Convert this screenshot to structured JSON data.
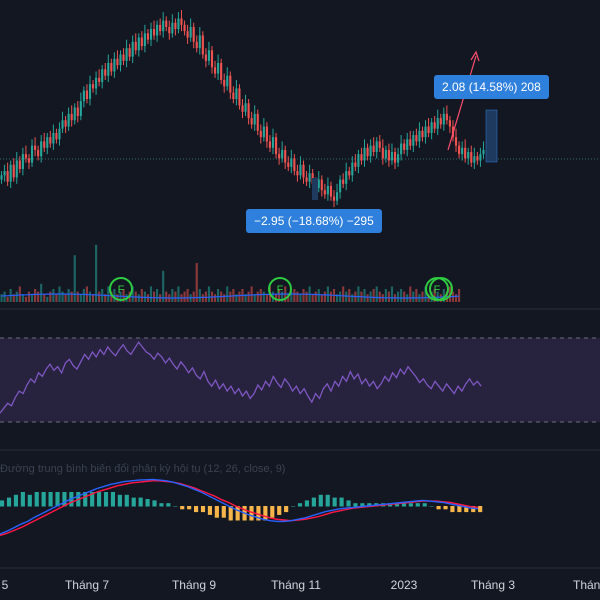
{
  "chart_data": {
    "type": "candlestick",
    "colors": {
      "background": "#131722",
      "up": "#26a69a",
      "down": "#ef5350",
      "volume_up": "#26a69a",
      "volume_down": "#ef5350",
      "rsi_line": "#7e57c2",
      "rsi_band": "#2a2440",
      "macd_line": "#2962ff",
      "signal_line": "#ff1744",
      "hist_pos": "#26a69a",
      "hist_neg": "#f6b54a",
      "callout_bg": "#2f7fdc",
      "marker": "#2ecc40",
      "midline": "#2a6f6a"
    },
    "x_axis": {
      "ticks": [
        "5",
        "Tháng 7",
        "Tháng 9",
        "Tháng 11",
        "2023",
        "Tháng 3",
        "Tháng"
      ]
    },
    "price_series": [
      142,
      144,
      139,
      147,
      141,
      149,
      145,
      152,
      150,
      148,
      156,
      154,
      151,
      158,
      155,
      160,
      157,
      162,
      159,
      164,
      168,
      165,
      171,
      168,
      174,
      170,
      177,
      182,
      178,
      185,
      183,
      188,
      186,
      192,
      189,
      195,
      191,
      197,
      194,
      199,
      196,
      202,
      198,
      205,
      201,
      207,
      203,
      209,
      206,
      211,
      208,
      213,
      210,
      215,
      212,
      209,
      214,
      211,
      216,
      213,
      210,
      207,
      212,
      205,
      202,
      208,
      199,
      196,
      201,
      193,
      190,
      195,
      187,
      184,
      189,
      181,
      178,
      183,
      175,
      172,
      176,
      169,
      166,
      171,
      163,
      160,
      165,
      158,
      155,
      160,
      152,
      150,
      154,
      148,
      146,
      150,
      144,
      142,
      147,
      141,
      139,
      143,
      138,
      136,
      140,
      135,
      133,
      137,
      132,
      130,
      134,
      140,
      138,
      144,
      142,
      148,
      146,
      152,
      149,
      155,
      151,
      156,
      153,
      158,
      155,
      150,
      154,
      149,
      153,
      148,
      152,
      157,
      154,
      159,
      156,
      161,
      158,
      163,
      160,
      165,
      162,
      167,
      164,
      169,
      166,
      171,
      168,
      165,
      160,
      156,
      152,
      155,
      150,
      153,
      148,
      151,
      149,
      152,
      154
    ],
    "volume_series": [
      3,
      4,
      2,
      5,
      3,
      4,
      6,
      3,
      2,
      4,
      3,
      5,
      4,
      7,
      3,
      2,
      4,
      5,
      3,
      6,
      4,
      3,
      5,
      4,
      18,
      4,
      3,
      5,
      6,
      4,
      3,
      22,
      4,
      5,
      3,
      6,
      4,
      5,
      3,
      4,
      5,
      3,
      4,
      6,
      4,
      3,
      5,
      4,
      3,
      6,
      4,
      5,
      3,
      12,
      4,
      3,
      5,
      4,
      6,
      3,
      4,
      5,
      3,
      4,
      15,
      5,
      3,
      4,
      6,
      4,
      3,
      5,
      4,
      3,
      6,
      4,
      5,
      3,
      4,
      5,
      3,
      4,
      6,
      3,
      4,
      5,
      4,
      3,
      6,
      4,
      3,
      5,
      4,
      6,
      3,
      4,
      5,
      4,
      3,
      5,
      4,
      6,
      3,
      4,
      5,
      3,
      4,
      6,
      4,
      5,
      3,
      4,
      6,
      4,
      5,
      3,
      4,
      6,
      4,
      5,
      3,
      4,
      5,
      6,
      4,
      3,
      5,
      4,
      6,
      3,
      4,
      5,
      4,
      3,
      6,
      4,
      5,
      3,
      4,
      6,
      3,
      4,
      5,
      4,
      3,
      5,
      4,
      6,
      4,
      3,
      5
    ],
    "rsi_series": [
      22,
      26,
      30,
      28,
      35,
      40,
      38,
      45,
      50,
      47,
      55,
      52,
      58,
      62,
      57,
      60,
      55,
      63,
      66,
      61,
      58,
      64,
      70,
      66,
      72,
      68,
      74,
      70,
      76,
      72,
      69,
      74,
      78,
      73,
      70,
      75,
      80,
      76,
      72,
      70,
      66,
      71,
      68,
      63,
      67,
      62,
      58,
      64,
      60,
      55,
      59,
      53,
      50,
      56,
      48,
      44,
      49,
      42,
      46,
      40,
      44,
      38,
      42,
      36,
      40,
      34,
      38,
      45,
      41,
      48,
      44,
      52,
      47,
      43,
      50,
      46,
      40,
      44,
      38,
      42,
      36,
      31,
      38,
      34,
      42,
      46,
      40,
      48,
      44,
      52,
      48,
      56,
      50,
      54,
      46,
      50,
      44,
      48,
      42,
      46,
      52,
      48,
      55,
      51,
      58,
      54,
      60,
      56,
      52,
      47,
      50,
      45,
      42,
      48,
      44,
      40,
      46,
      42,
      38,
      44,
      40,
      46,
      50,
      45,
      48,
      44
    ],
    "macd": {
      "title": "Đường trung bình biến đổi phân kỳ hội tụ (12, 26, close, 9)",
      "macd_series": [
        -4,
        -3.6,
        -3.1,
        -2.6,
        -2.2,
        -1.6,
        -1.1,
        -0.6,
        -0.1,
        0.4,
        0.9,
        1.3,
        1.7,
        2.1,
        2.5,
        2.8,
        3.1,
        3.3,
        3.5,
        3.6,
        3.7,
        3.75,
        3.8,
        3.7,
        3.6,
        3.4,
        3.1,
        2.8,
        2.4,
        2.0,
        1.5,
        1.0,
        0.5,
        0.0,
        -0.5,
        -0.9,
        -1.3,
        -1.6,
        -1.9,
        -2.1,
        -2.2,
        -2.2,
        -2.1,
        -1.9,
        -1.7,
        -1.4,
        -1.1,
        -0.8,
        -0.6,
        -0.4,
        -0.3,
        -0.2,
        -0.1,
        0.0,
        0.1,
        0.2,
        0.3,
        0.4,
        0.5,
        0.6,
        0.7,
        0.8,
        0.7,
        0.6,
        0.5,
        0.3,
        0.1,
        -0.1,
        -0.3,
        -0.4
      ],
      "signal_series": [
        -4.2,
        -3.9,
        -3.5,
        -3.1,
        -2.6,
        -2.1,
        -1.6,
        -1.1,
        -0.6,
        -0.1,
        0.4,
        0.8,
        1.2,
        1.6,
        2.0,
        2.3,
        2.6,
        2.9,
        3.1,
        3.3,
        3.4,
        3.5,
        3.6,
        3.6,
        3.5,
        3.4,
        3.2,
        2.9,
        2.6,
        2.2,
        1.8,
        1.4,
        0.9,
        0.5,
        0.0,
        -0.4,
        -0.8,
        -1.1,
        -1.4,
        -1.7,
        -1.9,
        -2.0,
        -2.1,
        -2.0,
        -1.9,
        -1.7,
        -1.5,
        -1.2,
        -0.9,
        -0.7,
        -0.5,
        -0.3,
        -0.2,
        -0.1,
        0.0,
        0.1,
        0.2,
        0.3,
        0.4,
        0.5,
        0.6,
        0.7,
        0.7,
        0.7,
        0.6,
        0.5,
        0.3,
        0.1,
        -0.1,
        -0.2
      ]
    },
    "callouts": {
      "upper": "2.08 (14.58%) 208",
      "lower": "−2.95 (−18.68%) −295"
    },
    "markers": [
      "F",
      "F",
      "F"
    ]
  }
}
